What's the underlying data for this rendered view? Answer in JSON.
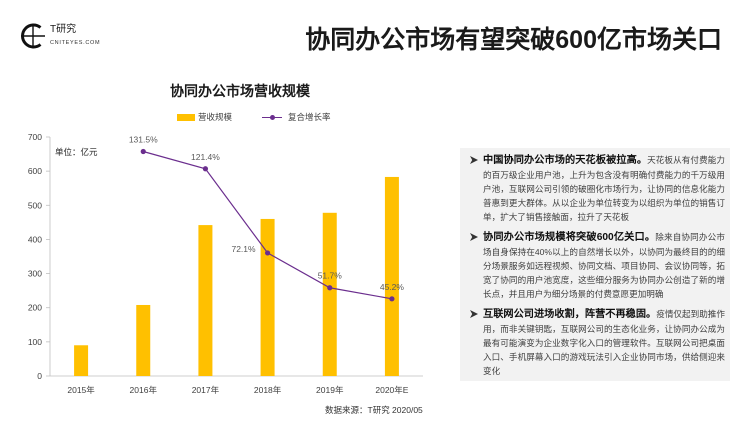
{
  "header": {
    "logo_icon": "t-research-logo-icon",
    "logo_text": "T研究",
    "logo_subtext": "CNITEYES.COM",
    "title": "协同办公市场有望突破600亿市场关口"
  },
  "chart_data": {
    "type": "bar",
    "title": "协同办公市场营收规模",
    "unit_label": "单位：亿元",
    "categories": [
      "2015年",
      "2016年",
      "2017年",
      "2018年",
      "2019年",
      "2020年E"
    ],
    "series": [
      {
        "name": "营收规模",
        "type": "bar",
        "axis": "left",
        "color": "#FFC000",
        "values": [
          90,
          208,
          442,
          460,
          478,
          583
        ]
      },
      {
        "name": "复合增长率",
        "type": "line",
        "axis": "right",
        "unit": "%",
        "color": "#6B2E8E",
        "values": [
          null,
          131.5,
          121.4,
          72.1,
          51.7,
          45.2
        ]
      }
    ],
    "ylim": [
      0,
      700
    ],
    "y_ticks": [
      0,
      100,
      200,
      300,
      400,
      500,
      600,
      700
    ],
    "y2lim": [
      0,
      140
    ],
    "grid": false,
    "legend": "top"
  },
  "bullet_icon": "arrow-bullet-icon",
  "insights": [
    {
      "heading": "中国协同办公市场的天花板被拉高。",
      "body": "天花板从有付费能力的百万级企业用户池，上升为包含没有明确付费能力的千万级用户池，互联网公司引领的破圈化市场行为，让协同的信息化能力普惠到更大群体。从以企业为单位转变为以组织为单位的销售订单，扩大了销售接触面，拉升了天花板"
    },
    {
      "heading": "协同办公市场规模将突破600亿关口。",
      "body": "除来自协同办公市场自身保持在40%以上的自然增长以外，以协同为最终目的的细分场景服务如远程视频、协同文档、项目协同、会议协同等，拓宽了协同的用户池宽度，这些细分服务为协同办公创造了新的增长点，并且用户为细分场景的付费意愿更加明确"
    },
    {
      "heading": "互联网公司进场收割，阵营不再稳固。",
      "body": "疫情仅起到助推作用，而非关键钥匙，互联网公司的生态化业务，让协同办公成为最有可能演变为企业数字化入口的管理软件。互联网公司把桌面入口、手机屏幕入口的游戏玩法引入企业协同市场，供给侧迎来变化"
    }
  ],
  "source": "数据来源：T研究 2020/05"
}
